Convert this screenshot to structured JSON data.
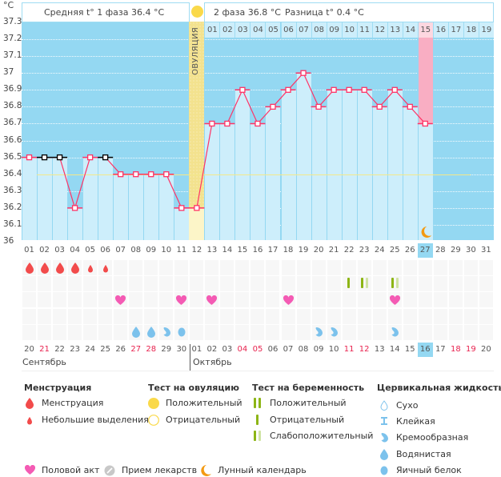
{
  "header": {
    "phase1_label": "Средняя t° 1 фаза",
    "phase1_value": "36.4 °C",
    "phase2_label": "2 фаза",
    "phase2_value": "36.8 °C",
    "diff_label": "Разница t°",
    "diff_value": "0.4 °C",
    "ovulation_icon": "sun-icon"
  },
  "ovulation_label": "ОВУЛЯЦИЯ",
  "colors": {
    "background": "#94d8f2",
    "bar": "#cdeefb",
    "line": "#ff3366",
    "ovulation": "#f3e28e",
    "current_day_phase2": "#f9aec3",
    "coverline": "#f3e88a",
    "excluded_marker": "#000000"
  },
  "chart_data": {
    "type": "line",
    "yunit": "°C",
    "ylim": [
      36,
      37.3
    ],
    "yticks": [
      "37.3",
      "37.2",
      "37.1",
      "37",
      "36.9",
      "36.8",
      "36.7",
      "36.6",
      "36.5",
      "36.4",
      "36.3",
      "36.2",
      "36.1",
      "36"
    ],
    "grid": true,
    "cycle_days": [
      "01",
      "02",
      "03",
      "04",
      "05",
      "06",
      "07",
      "08",
      "09",
      "10",
      "11",
      "12",
      "13",
      "14",
      "15",
      "16",
      "17",
      "18",
      "19",
      "20",
      "21",
      "22",
      "23",
      "24",
      "25",
      "26",
      "27",
      "28",
      "29",
      "30",
      "31"
    ],
    "temperatures": [
      36.5,
      36.5,
      36.5,
      36.2,
      36.5,
      36.5,
      36.4,
      36.4,
      36.4,
      36.4,
      36.2,
      36.2,
      36.7,
      36.7,
      36.9,
      36.7,
      36.8,
      36.9,
      37.0,
      36.8,
      36.9,
      36.9,
      36.9,
      36.8,
      36.9,
      36.8,
      36.7
    ],
    "excluded_days": [
      2,
      3,
      6
    ],
    "coverline": 36.4,
    "ovulation_day": 12,
    "current_day": 27,
    "phase2_start_day": 13,
    "phase2_days": [
      "01",
      "02",
      "03",
      "04",
      "05",
      "06",
      "07",
      "08",
      "09",
      "10",
      "11",
      "12",
      "13",
      "14",
      "15",
      "16",
      "17",
      "18",
      "19"
    ],
    "moon_day": 27
  },
  "calendar": {
    "dates": [
      "20",
      "21",
      "22",
      "23",
      "24",
      "25",
      "26",
      "27",
      "28",
      "29",
      "30",
      "01",
      "02",
      "03",
      "04",
      "05",
      "06",
      "07",
      "08",
      "09",
      "10",
      "11",
      "12",
      "13",
      "14",
      "15",
      "16",
      "17",
      "18",
      "19",
      "20"
    ],
    "weekend_days": [
      1,
      7,
      8,
      14,
      15,
      21,
      22,
      28,
      29
    ],
    "months": [
      "Сентябрь",
      "Октябрь"
    ]
  },
  "symbols": {
    "menstruation": {
      "1": "heavy",
      "2": "heavy",
      "3": "heavy",
      "4": "heavy",
      "5": "light",
      "6": "light"
    },
    "pregnancy_test": {
      "22": "negative",
      "23": "weak",
      "25": "weak"
    },
    "intercourse": [
      7,
      11,
      13,
      18,
      25
    ],
    "cervical_fluid": {
      "8": "watery",
      "9": "watery",
      "10": "creamy",
      "11": "eggwhite",
      "20": "creamy",
      "21": "creamy",
      "25": "creamy"
    }
  },
  "legend": {
    "menstruation": {
      "title": "Менструация",
      "items": [
        "Менструация",
        "Небольшие выделения"
      ]
    },
    "ovulation_test": {
      "title": "Тест на овуляцию",
      "items": [
        "Положительный",
        "Отрицательный"
      ]
    },
    "pregnancy_test": {
      "title": "Тест на беременность",
      "items": [
        "Положительный",
        "Отрицательный",
        "Слабоположительный"
      ]
    },
    "cervical_fluid": {
      "title": "Цервикальная жидкость",
      "items": [
        "Сухо",
        "Клейкая",
        "Кремообразная",
        "Водянистая",
        "Яичный белок"
      ]
    },
    "other": [
      "Половой акт",
      "Прием лекарств",
      "Лунный календарь"
    ]
  }
}
